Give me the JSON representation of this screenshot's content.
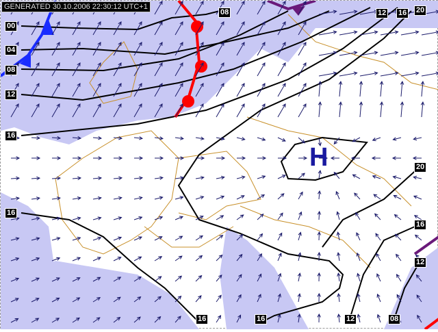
{
  "header": {
    "generated": "GENERATED 30.10.2006 22:30:12 UTC+1"
  },
  "pressure_centre": {
    "label": "H"
  },
  "isobar_labels": [
    "00",
    "04",
    "08",
    "12",
    "16",
    "16",
    "08",
    "12",
    "16",
    "20",
    "20",
    "16",
    "12",
    "08",
    "12",
    "16",
    "16"
  ],
  "colors": {
    "shaded": "#c8c8f4",
    "isobar": "#000000",
    "warm_front": "#ff0000",
    "cold_front": "#1a2cff",
    "occluded": "#6a1a7a",
    "wind": "#1a1a6a",
    "border": "#c8902a",
    "high": "#1a1aa0"
  }
}
